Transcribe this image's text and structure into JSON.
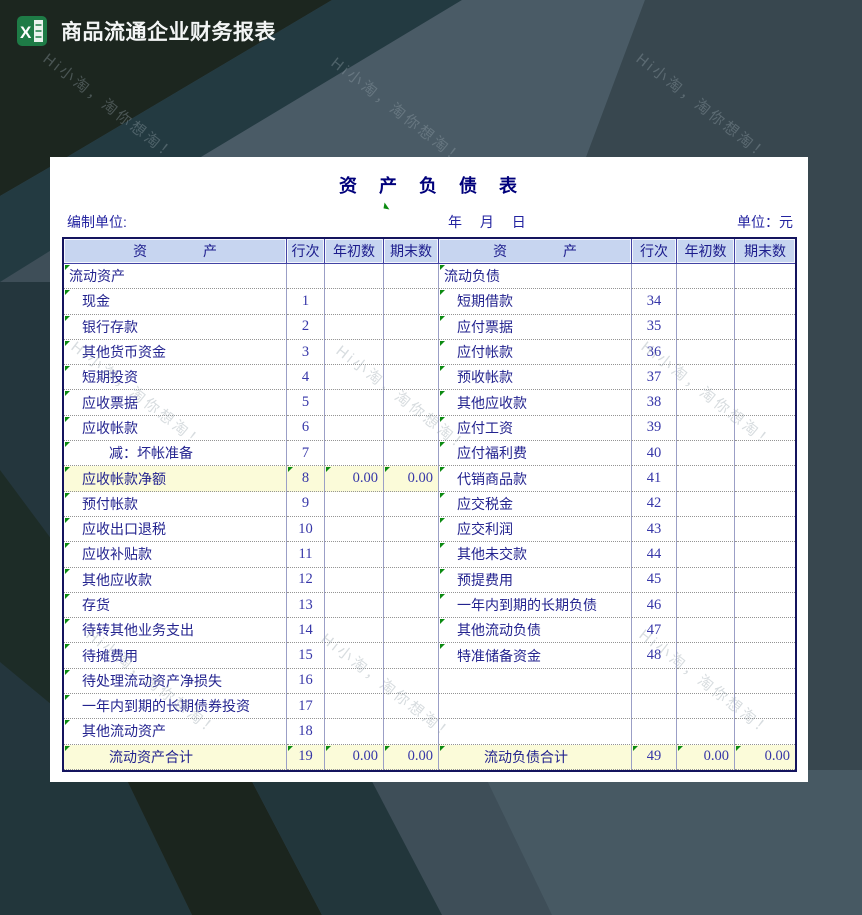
{
  "titlebar": {
    "title": "商品流通企业财务报表",
    "icon": "excel-icon"
  },
  "watermark": {
    "text": "Hi小淘，淘你想淘！"
  },
  "colors": {
    "accent_green": "#1E7B46",
    "header_bg": "#C7D5F0",
    "highlight_bg": "#FBFBD9",
    "ink_blue": "#23238F",
    "title_blue": "#00007B",
    "bg_slate": "#3E4E58",
    "bg_dark_green": "#1C261F",
    "bg_teal": "#233A41",
    "bg_light_slate": "#4A5B66"
  },
  "sheet": {
    "title": "资　产　负　债　表",
    "prepared_label": "编制单位:",
    "date_label": "年　 月　 日",
    "unit_label": "单位：元",
    "columns": [
      {
        "label": "资　　　　产"
      },
      {
        "label": "行次"
      },
      {
        "label": "年初数"
      },
      {
        "label": "期末数"
      },
      {
        "label": "资　　　　产"
      },
      {
        "label": "行次"
      },
      {
        "label": "年初数"
      },
      {
        "label": "期末数"
      }
    ],
    "left_rows": [
      {
        "label": "流动资产",
        "indent": 0
      },
      {
        "label": "现金",
        "line": "1",
        "indent": 1
      },
      {
        "label": "银行存款",
        "line": "2",
        "indent": 1
      },
      {
        "label": "其他货币资金",
        "line": "3",
        "indent": 1
      },
      {
        "label": "短期投资",
        "line": "4",
        "indent": 1
      },
      {
        "label": "应收票据",
        "line": "5",
        "indent": 1
      },
      {
        "label": "应收帐款",
        "line": "6",
        "indent": 1
      },
      {
        "label": "减：坏帐准备",
        "line": "7",
        "indent": 2
      },
      {
        "label": "应收帐款净额",
        "line": "8",
        "begin": "0.00",
        "end": "0.00",
        "indent": 1,
        "highlight": true
      },
      {
        "label": "预付帐款",
        "line": "9",
        "indent": 1
      },
      {
        "label": "应收出口退税",
        "line": "10",
        "indent": 1
      },
      {
        "label": "应收补贴款",
        "line": "11",
        "indent": 1
      },
      {
        "label": "其他应收款",
        "line": "12",
        "indent": 1
      },
      {
        "label": "存货",
        "line": "13",
        "indent": 1
      },
      {
        "label": "待转其他业务支出",
        "line": "14",
        "indent": 1
      },
      {
        "label": "待摊费用",
        "line": "15",
        "indent": 1
      },
      {
        "label": "待处理流动资产净损失",
        "line": "16",
        "indent": 1
      },
      {
        "label": "一年内到期的长期债券投资",
        "line": "17",
        "indent": 1
      },
      {
        "label": "其他流动资产",
        "line": "18",
        "indent": 1
      },
      {
        "label": "流动资产合计",
        "line": "19",
        "begin": "0.00",
        "end": "0.00",
        "indent": 2,
        "highlight": true
      }
    ],
    "right_rows": [
      {
        "label": "流动负债",
        "indent": 0
      },
      {
        "label": "短期借款",
        "line": "34",
        "indent": 1
      },
      {
        "label": "应付票据",
        "line": "35",
        "indent": 1
      },
      {
        "label": "应付帐款",
        "line": "36",
        "indent": 1
      },
      {
        "label": "预收帐款",
        "line": "37",
        "indent": 1
      },
      {
        "label": "其他应收款",
        "line": "38",
        "indent": 1
      },
      {
        "label": "应付工资",
        "line": "39",
        "indent": 1
      },
      {
        "label": "应付福利费",
        "line": "40",
        "indent": 1
      },
      {
        "label": "代销商品款",
        "line": "41",
        "indent": 1
      },
      {
        "label": "应交税金",
        "line": "42",
        "indent": 1
      },
      {
        "label": "应交利润",
        "line": "43",
        "indent": 1
      },
      {
        "label": "其他未交款",
        "line": "44",
        "indent": 1
      },
      {
        "label": "预提费用",
        "line": "45",
        "indent": 1
      },
      {
        "label": "一年内到期的长期负债",
        "line": "46",
        "indent": 1
      },
      {
        "label": "其他流动负债",
        "line": "47",
        "indent": 1
      },
      {
        "label": "特准储备资金",
        "line": "48",
        "indent": 1
      },
      {},
      {},
      {},
      {
        "label": "流动负债合计",
        "line": "49",
        "begin": "0.00",
        "end": "0.00",
        "indent": 2,
        "highlight": true
      }
    ]
  }
}
